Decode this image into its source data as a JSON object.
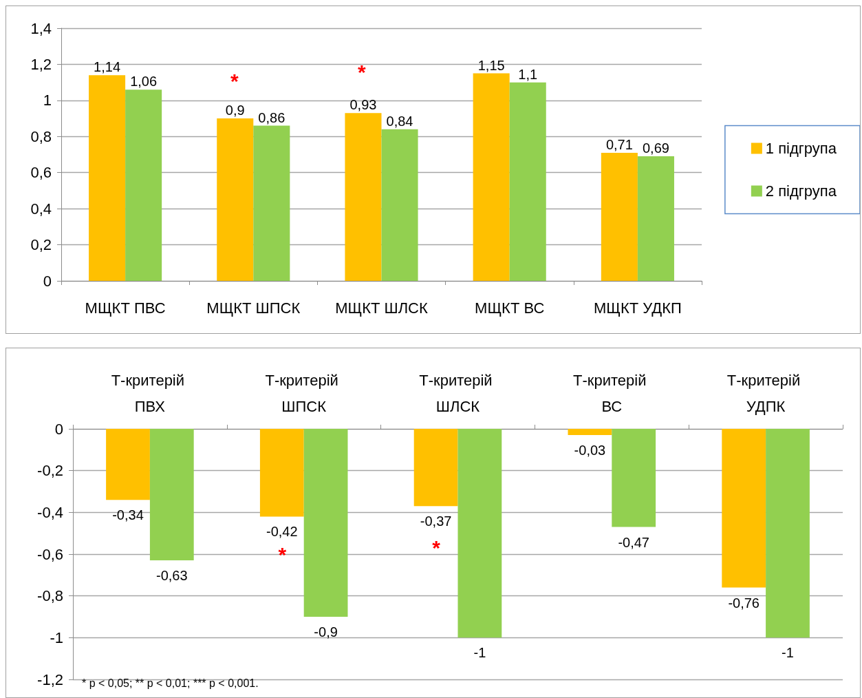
{
  "chart_data": [
    {
      "type": "bar",
      "categories": [
        "МЩКТ ПВС",
        "МЩКТ ШПСК",
        "МЩКТ ШЛСК",
        "МЩКТ ВС",
        "МЩКТ УДКП"
      ],
      "series": [
        {
          "name": "1 підгрупа",
          "color": "#ffc000",
          "values": [
            1.14,
            0.9,
            0.93,
            1.15,
            0.71
          ],
          "value_labels": [
            "1,14",
            "0,9",
            "0,93",
            "1,15",
            "0,71"
          ]
        },
        {
          "name": "2 підгрупа",
          "color": "#92d050",
          "values": [
            1.06,
            0.86,
            0.84,
            1.1,
            0.69
          ],
          "value_labels": [
            "1,06",
            "0,86",
            "0,84",
            "1,1",
            "0,69"
          ]
        }
      ],
      "ylim": [
        0,
        1.4
      ],
      "yticks": [
        {
          "value": 0,
          "label": "0"
        },
        {
          "value": 0.2,
          "label": "0,2"
        },
        {
          "value": 0.4,
          "label": "0,4"
        },
        {
          "value": 0.6,
          "label": "0,6"
        },
        {
          "value": 0.8,
          "label": "0,8"
        },
        {
          "value": 1,
          "label": "1"
        },
        {
          "value": 1.2,
          "label": "1,2"
        },
        {
          "value": 1.4,
          "label": "1,4"
        }
      ],
      "grid": "y",
      "legend": "right",
      "annotations": [
        "*",
        "*"
      ]
    },
    {
      "type": "bar",
      "categories": [
        "Т-критерій ПВХ",
        "Т-критерій ШПСК",
        "Т-критерій ШЛСК",
        "Т-критерій ВС",
        "Т-критерій УДПК"
      ],
      "series": [
        {
          "color": "#ffc000",
          "values": [
            -0.34,
            -0.42,
            -0.37,
            -0.03,
            -0.76
          ],
          "value_labels": [
            "-0,34",
            "-0,42",
            "-0,37",
            "-0,03",
            "-0,76"
          ]
        },
        {
          "color": "#92d050",
          "values": [
            -0.63,
            -0.9,
            -1,
            -0.47,
            -1
          ],
          "value_labels": [
            "-0,63",
            "-0,9",
            "-1",
            "-0,47",
            "-1"
          ]
        }
      ],
      "ylim": [
        -1.2,
        0
      ],
      "yticks": [
        {
          "value": -1.2,
          "label": "-1,2"
        },
        {
          "value": -1,
          "label": "-1"
        },
        {
          "value": -0.8,
          "label": "-0,8"
        },
        {
          "value": -0.6,
          "label": "-0,6"
        },
        {
          "value": -0.4,
          "label": "-0,4"
        },
        {
          "value": -0.2,
          "label": "-0,2"
        },
        {
          "value": 0,
          "label": "0"
        }
      ],
      "grid": "y",
      "annotations": [
        {
          "text": "*",
          "x": "Т-критерій ШПСК",
          "y": -0.6
        },
        {
          "text": "*",
          "x": "Т-критерій ШЛСК",
          "y": -0.57
        },
        "* p < 0,05; ** p < 0,01; *** p < 0,001."
      ]
    }
  ]
}
